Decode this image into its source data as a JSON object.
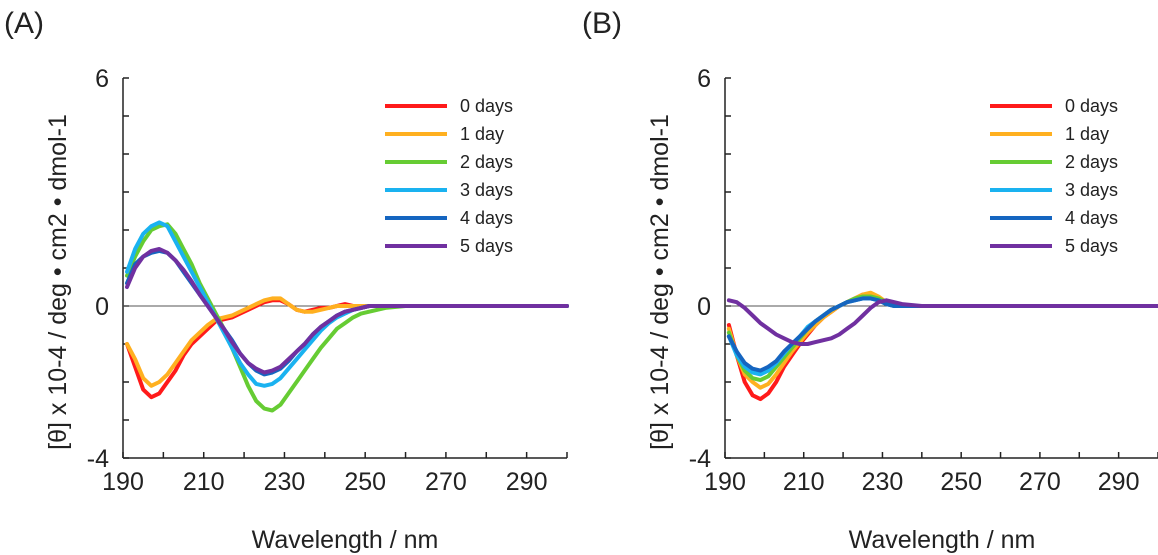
{
  "chart_data": [
    {
      "type": "line",
      "panel_label": "(A)",
      "xlabel": "Wavelength / nm",
      "ylabel": "[θ] x 10-4 / deg • cm2 • dmol-1",
      "xlim": [
        190,
        300
      ],
      "ylim": [
        -4,
        6
      ],
      "xticks": [
        190,
        210,
        230,
        250,
        270,
        290
      ],
      "yticks": [
        -4,
        0,
        6
      ],
      "legend_position": "top-right",
      "x": [
        191,
        193,
        195,
        197,
        199,
        201,
        203,
        205,
        207,
        209,
        211,
        213,
        215,
        217,
        219,
        221,
        223,
        225,
        227,
        229,
        231,
        233,
        235,
        237,
        239,
        241,
        243,
        245,
        247,
        249,
        251,
        255,
        260,
        265,
        270,
        280,
        290,
        300
      ],
      "series": [
        {
          "name": "0 days",
          "color": "#ff1a1a",
          "values": [
            -1.0,
            -1.6,
            -2.2,
            -2.4,
            -2.3,
            -2.0,
            -1.7,
            -1.3,
            -1.0,
            -0.8,
            -0.6,
            -0.4,
            -0.35,
            -0.3,
            -0.2,
            -0.1,
            0.0,
            0.1,
            0.15,
            0.15,
            0.05,
            -0.1,
            -0.15,
            -0.1,
            -0.05,
            -0.05,
            0.0,
            0.05,
            0.0,
            -0.05,
            0.0,
            0.0,
            0.0,
            0.0,
            0.0,
            0.0,
            0.0,
            0.0
          ]
        },
        {
          "name": "1 day",
          "color": "#ffb020",
          "values": [
            -1.0,
            -1.4,
            -1.9,
            -2.1,
            -2.0,
            -1.8,
            -1.5,
            -1.2,
            -0.9,
            -0.7,
            -0.5,
            -0.35,
            -0.3,
            -0.25,
            -0.15,
            -0.05,
            0.05,
            0.15,
            0.2,
            0.2,
            0.05,
            -0.1,
            -0.15,
            -0.15,
            -0.1,
            -0.05,
            0.0,
            0.0,
            0.0,
            0.0,
            0.0,
            0.0,
            0.0,
            0.0,
            0.0,
            0.0,
            0.0,
            0.0
          ]
        },
        {
          "name": "2 days",
          "color": "#66cc33",
          "values": [
            0.8,
            1.3,
            1.7,
            2.0,
            2.1,
            2.15,
            1.9,
            1.5,
            1.1,
            0.6,
            0.2,
            -0.2,
            -0.6,
            -1.1,
            -1.6,
            -2.1,
            -2.5,
            -2.7,
            -2.75,
            -2.6,
            -2.3,
            -2.0,
            -1.7,
            -1.4,
            -1.1,
            -0.85,
            -0.6,
            -0.45,
            -0.3,
            -0.2,
            -0.15,
            -0.05,
            0.0,
            0.0,
            0.0,
            0.0,
            0.0,
            0.0
          ]
        },
        {
          "name": "3 days",
          "color": "#1ab2f0",
          "values": [
            0.9,
            1.5,
            1.9,
            2.1,
            2.2,
            2.1,
            1.7,
            1.3,
            0.9,
            0.5,
            0.1,
            -0.3,
            -0.7,
            -1.1,
            -1.5,
            -1.8,
            -2.05,
            -2.1,
            -2.05,
            -1.9,
            -1.65,
            -1.4,
            -1.15,
            -0.9,
            -0.65,
            -0.45,
            -0.3,
            -0.2,
            -0.1,
            -0.05,
            0.0,
            0.0,
            0.0,
            0.0,
            0.0,
            0.0,
            0.0,
            0.0
          ]
        },
        {
          "name": "4 days",
          "color": "#1565c0",
          "values": [
            0.6,
            1.1,
            1.3,
            1.4,
            1.45,
            1.4,
            1.2,
            0.9,
            0.6,
            0.3,
            0.0,
            -0.3,
            -0.6,
            -0.9,
            -1.25,
            -1.5,
            -1.7,
            -1.8,
            -1.75,
            -1.65,
            -1.45,
            -1.2,
            -1.0,
            -0.75,
            -0.55,
            -0.4,
            -0.25,
            -0.15,
            -0.1,
            -0.05,
            0.0,
            0.0,
            0.0,
            0.0,
            0.0,
            0.0,
            0.0,
            0.0
          ]
        },
        {
          "name": "5 days",
          "color": "#7030a0",
          "values": [
            0.5,
            1.0,
            1.3,
            1.45,
            1.5,
            1.4,
            1.2,
            0.95,
            0.65,
            0.3,
            0.0,
            -0.3,
            -0.6,
            -0.95,
            -1.25,
            -1.5,
            -1.65,
            -1.75,
            -1.7,
            -1.6,
            -1.4,
            -1.2,
            -1.0,
            -0.75,
            -0.55,
            -0.4,
            -0.25,
            -0.15,
            -0.1,
            -0.05,
            0.0,
            0.0,
            0.0,
            0.0,
            0.0,
            0.0,
            0.0,
            0.0
          ]
        }
      ]
    },
    {
      "type": "line",
      "panel_label": "(B)",
      "xlabel": "Wavelength / nm",
      "ylabel": "[θ] x 10-4 / deg • cm2 • dmol-1",
      "xlim": [
        190,
        300
      ],
      "ylim": [
        -4,
        6
      ],
      "xticks": [
        190,
        210,
        230,
        250,
        270,
        290
      ],
      "yticks": [
        -4,
        0,
        6
      ],
      "legend_position": "top-right",
      "x": [
        191,
        193,
        195,
        197,
        199,
        201,
        203,
        205,
        207,
        209,
        211,
        213,
        215,
        217,
        219,
        221,
        223,
        225,
        227,
        229,
        231,
        233,
        235,
        240,
        245,
        250,
        260,
        270,
        280,
        290,
        300
      ],
      "series": [
        {
          "name": "0 days",
          "color": "#ff1a1a",
          "values": [
            -0.5,
            -1.3,
            -2.0,
            -2.35,
            -2.45,
            -2.3,
            -2.0,
            -1.6,
            -1.3,
            -1.0,
            -0.75,
            -0.5,
            -0.3,
            -0.15,
            0.0,
            0.1,
            0.2,
            0.3,
            0.3,
            0.2,
            0.05,
            0.0,
            0.0,
            0.0,
            0.0,
            0.0,
            0.0,
            0.0,
            0.0,
            0.0,
            0.0
          ]
        },
        {
          "name": "1 day",
          "color": "#ffb020",
          "values": [
            -0.6,
            -1.3,
            -1.8,
            -2.0,
            -2.15,
            -2.05,
            -1.8,
            -1.5,
            -1.2,
            -0.95,
            -0.7,
            -0.5,
            -0.3,
            -0.15,
            0.0,
            0.1,
            0.2,
            0.3,
            0.35,
            0.25,
            0.1,
            0.0,
            0.0,
            0.0,
            0.0,
            0.0,
            0.0,
            0.0,
            0.0,
            0.0,
            0.0
          ]
        },
        {
          "name": "2 days",
          "color": "#66cc33",
          "values": [
            -0.7,
            -1.3,
            -1.7,
            -1.9,
            -1.95,
            -1.85,
            -1.6,
            -1.35,
            -1.1,
            -0.85,
            -0.6,
            -0.4,
            -0.25,
            -0.1,
            0.0,
            0.1,
            0.2,
            0.25,
            0.25,
            0.2,
            0.1,
            0.0,
            0.0,
            0.0,
            0.0,
            0.0,
            0.0,
            0.0,
            0.0,
            0.0,
            0.0
          ]
        },
        {
          "name": "3 days",
          "color": "#1ab2f0",
          "values": [
            -0.8,
            -1.3,
            -1.6,
            -1.75,
            -1.8,
            -1.7,
            -1.5,
            -1.25,
            -1.0,
            -0.8,
            -0.55,
            -0.4,
            -0.25,
            -0.1,
            0.0,
            0.1,
            0.15,
            0.2,
            0.2,
            0.15,
            0.05,
            0.0,
            0.0,
            0.0,
            0.0,
            0.0,
            0.0,
            0.0,
            0.0,
            0.0,
            0.0
          ]
        },
        {
          "name": "4 days",
          "color": "#1565c0",
          "values": [
            -0.8,
            -1.2,
            -1.5,
            -1.65,
            -1.7,
            -1.6,
            -1.45,
            -1.2,
            -1.0,
            -0.8,
            -0.6,
            -0.4,
            -0.25,
            -0.1,
            0.0,
            0.1,
            0.15,
            0.2,
            0.2,
            0.15,
            0.05,
            0.0,
            0.0,
            0.0,
            0.0,
            0.0,
            0.0,
            0.0,
            0.0,
            0.0,
            0.0
          ]
        },
        {
          "name": "5 days",
          "color": "#7030a0",
          "values": [
            0.15,
            0.1,
            -0.05,
            -0.25,
            -0.45,
            -0.6,
            -0.75,
            -0.85,
            -0.95,
            -1.0,
            -1.0,
            -0.95,
            -0.9,
            -0.85,
            -0.75,
            -0.6,
            -0.45,
            -0.25,
            -0.05,
            0.1,
            0.15,
            0.1,
            0.05,
            0.0,
            0.0,
            0.0,
            0.0,
            0.0,
            0.0,
            0.0,
            0.0
          ]
        }
      ]
    }
  ]
}
